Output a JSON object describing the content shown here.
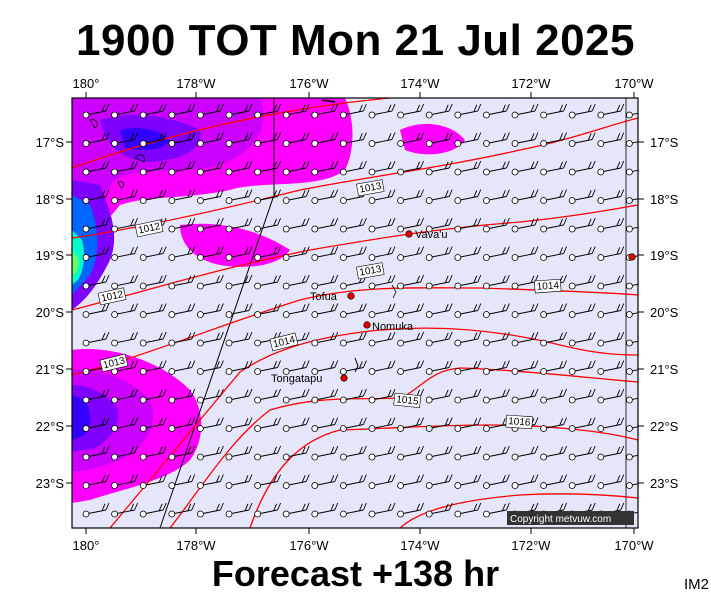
{
  "header": {
    "title": "1900 TOT Mon 21 Jul 2025"
  },
  "footer": {
    "forecast": "Forecast +138 hr",
    "code": "IM2"
  },
  "copyright": "Copyright metvuw.com",
  "axes": {
    "lon_labels": [
      "180°",
      "178°W",
      "176°W",
      "174°W",
      "172°W",
      "170°W"
    ],
    "lat_labels": [
      "17°S",
      "18°S",
      "19°S",
      "20°S",
      "21°S",
      "22°S",
      "23°S"
    ]
  },
  "places": [
    {
      "name": "Vava'u",
      "lon": -174.0,
      "lat": -18.65
    },
    {
      "name": "Tofua",
      "lon": -175.05,
      "lat": -19.75
    },
    {
      "name": "Nomuka",
      "lon": -174.8,
      "lat": -20.25
    },
    {
      "name": "Tongatapu",
      "lon": -175.2,
      "lat": -21.15
    }
  ],
  "isobar_labels": [
    "1012",
    "1012",
    "1013",
    "1013",
    "1014",
    "1014",
    "1015",
    "1016"
  ],
  "colors": {
    "background": "#e6e6fa",
    "rain_heavy": "#0033ff",
    "rain_mid": "#8000ff",
    "rain_light": "#ff00ff",
    "isobar": "#ff0000",
    "wind": "#000000"
  }
}
